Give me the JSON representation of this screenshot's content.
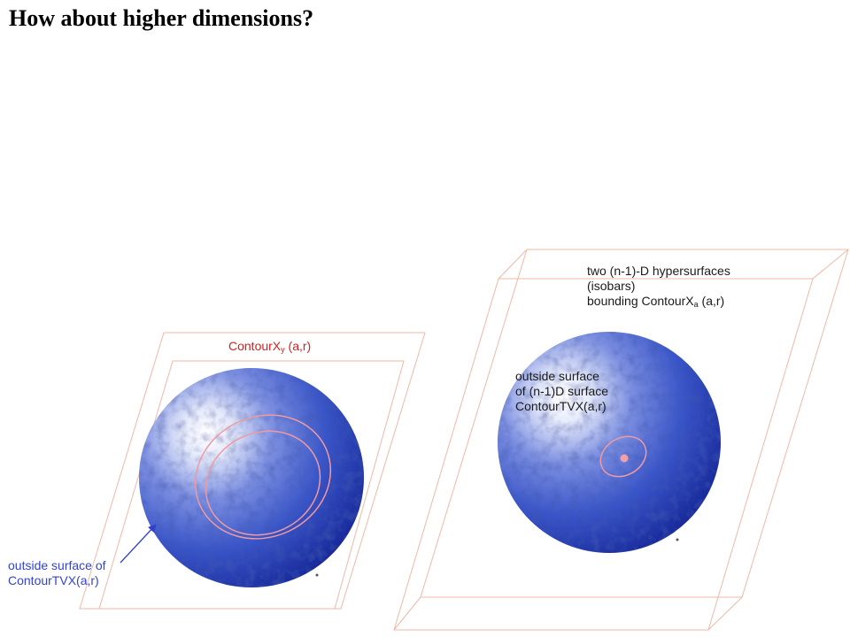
{
  "title": "How about higher dimensions?",
  "left_figure": {
    "contour_label_prefix": "ContourX",
    "contour_label_sub": "y",
    "contour_label_suffix": " (a,r)",
    "outside_label_line1": "outside surface of",
    "outside_label_line2": "ContourTVX(a,r)"
  },
  "right_figure": {
    "hyper_label_line1": "two (n-1)-D hypersurfaces",
    "hyper_label_line2": "(isobars)",
    "hyper_label_line3_prefix": " bounding ContourX",
    "hyper_label_line3_sub": "a",
    "hyper_label_line3_suffix": " (a,r)",
    "outside_label_line1": "outside surface",
    "outside_label_line2": "of (n-1)D surface",
    "outside_label_line3": "ContourTVX(a,r)"
  },
  "colors": {
    "plane_stroke": "#f0b8a8",
    "ellipse_stroke": "#f09aa0",
    "sphere_dark": "#1a2a9a",
    "sphere_mid": "#3a55c8",
    "arrow": "#3040c8"
  }
}
